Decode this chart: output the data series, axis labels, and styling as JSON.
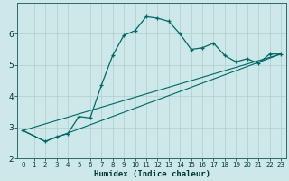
{
  "xlabel": "Humidex (Indice chaleur)",
  "bg_color": "#cce8e8",
  "grid_color": "#b0cccc",
  "line_color": "#006666",
  "xlim": [
    -0.5,
    23.5
  ],
  "ylim": [
    2.0,
    7.0
  ],
  "yticks": [
    2,
    3,
    4,
    5,
    6
  ],
  "xticks": [
    0,
    1,
    2,
    3,
    4,
    5,
    6,
    7,
    8,
    9,
    10,
    11,
    12,
    13,
    14,
    15,
    16,
    17,
    18,
    19,
    20,
    21,
    22,
    23
  ],
  "series1_x": [
    0,
    2,
    3,
    4,
    5,
    6,
    7,
    8,
    9,
    10,
    11,
    12,
    13,
    14,
    15,
    16,
    17,
    18,
    19,
    20,
    21,
    22,
    23
  ],
  "series1_y": [
    2.9,
    2.55,
    2.7,
    2.8,
    3.35,
    3.3,
    4.35,
    5.3,
    5.95,
    6.1,
    6.55,
    6.5,
    6.4,
    6.0,
    5.5,
    5.55,
    5.7,
    5.3,
    5.1,
    5.2,
    5.05,
    5.35,
    5.35
  ],
  "series2_x": [
    0,
    23
  ],
  "series2_y": [
    2.9,
    5.35
  ],
  "series3_x": [
    0,
    2,
    23
  ],
  "series3_y": [
    2.9,
    2.55,
    5.35
  ],
  "xlabel_fontsize": 6.5,
  "tick_fontsize_x": 5.0,
  "tick_fontsize_y": 6.5
}
